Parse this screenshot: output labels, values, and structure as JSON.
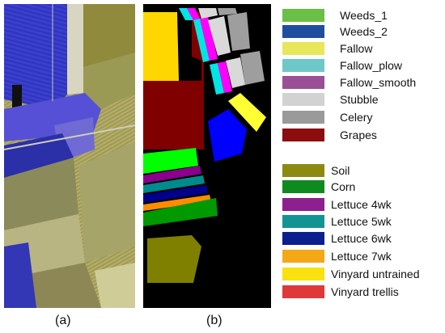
{
  "captions": {
    "a": "(a)",
    "b": "(b)"
  },
  "legend": {
    "entries": [
      {
        "label": "Weeds_1",
        "color": "#6abf45"
      },
      {
        "label": "Weeds_2",
        "color": "#1f4e9e"
      },
      {
        "label": "Fallow",
        "color": "#e8e65a"
      },
      {
        "label": "Fallow_plow",
        "color": "#6dc9c9"
      },
      {
        "label": "Fallow_smooth",
        "color": "#9b4f96"
      },
      {
        "label": "Stubble",
        "color": "#d2d2d2"
      },
      {
        "label": "Celery",
        "color": "#9a9a9a"
      },
      {
        "label": "Grapes",
        "color": "#8b0d0d"
      },
      {
        "label": "Soil",
        "color": "#8c8a10"
      },
      {
        "label": "Corn",
        "color": "#0f8a1e"
      },
      {
        "label": "Lettuce 4wk",
        "color": "#8e1f8f"
      },
      {
        "label": "Lettuce 5wk",
        "color": "#139494"
      },
      {
        "label": "Lettuce 6wk",
        "color": "#0b1f8e"
      },
      {
        "label": "Lettuce 7wk",
        "color": "#f5a816"
      },
      {
        "label": "Vinyard untrained",
        "color": "#f8e10d"
      },
      {
        "label": "Vinyard trellis",
        "color": "#de3838"
      }
    ]
  },
  "map_colors": {
    "background": "#000000",
    "grapes": "#800000",
    "vinyard_untrained": "#ffd700",
    "fallow_plow": "#00e5e5",
    "fallow_smooth": "#ff00ff",
    "stubble": "#d9d9d9",
    "celery": "#9e9e9e",
    "fallow": "#ffff33",
    "weeds": "#0000ff",
    "weeds_1": "#00ff00",
    "lettuce_4wk": "#8b008b",
    "lettuce_5wk": "#008b8b",
    "lettuce_6wk": "#00008b",
    "lettuce_7wk": "#ff8c00",
    "corn": "#009900",
    "soil": "#808000",
    "vinyard_trellis": "#e00000"
  }
}
